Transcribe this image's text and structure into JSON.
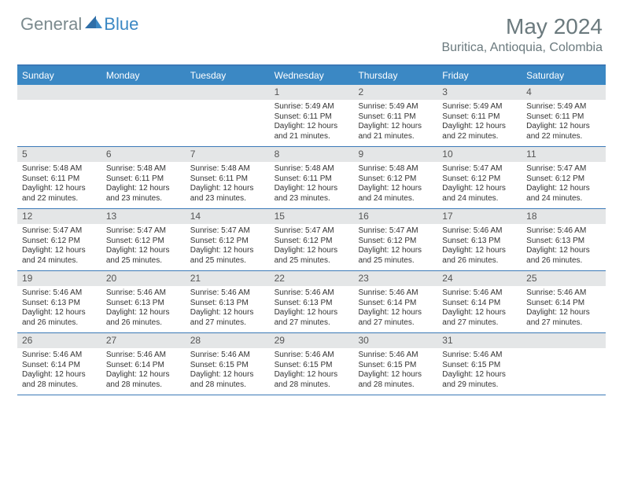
{
  "logo": {
    "general": "General",
    "blue": "Blue"
  },
  "title": "May 2024",
  "location": "Buritica, Antioquia, Colombia",
  "colors": {
    "header_bar": "#3B88C4",
    "row_border": "#3B79B7",
    "daynum_bg": "#E4E6E7",
    "text_muted": "#6B7A7E",
    "logo_gray": "#7B8A8E",
    "logo_blue": "#3B88C4"
  },
  "day_headers": [
    "Sunday",
    "Monday",
    "Tuesday",
    "Wednesday",
    "Thursday",
    "Friday",
    "Saturday"
  ],
  "weeks": [
    [
      null,
      null,
      null,
      {
        "n": "1",
        "sr": "5:49 AM",
        "ss": "6:11 PM",
        "dl": "12 hours and 21 minutes."
      },
      {
        "n": "2",
        "sr": "5:49 AM",
        "ss": "6:11 PM",
        "dl": "12 hours and 21 minutes."
      },
      {
        "n": "3",
        "sr": "5:49 AM",
        "ss": "6:11 PM",
        "dl": "12 hours and 22 minutes."
      },
      {
        "n": "4",
        "sr": "5:49 AM",
        "ss": "6:11 PM",
        "dl": "12 hours and 22 minutes."
      }
    ],
    [
      {
        "n": "5",
        "sr": "5:48 AM",
        "ss": "6:11 PM",
        "dl": "12 hours and 22 minutes."
      },
      {
        "n": "6",
        "sr": "5:48 AM",
        "ss": "6:11 PM",
        "dl": "12 hours and 23 minutes."
      },
      {
        "n": "7",
        "sr": "5:48 AM",
        "ss": "6:11 PM",
        "dl": "12 hours and 23 minutes."
      },
      {
        "n": "8",
        "sr": "5:48 AM",
        "ss": "6:11 PM",
        "dl": "12 hours and 23 minutes."
      },
      {
        "n": "9",
        "sr": "5:48 AM",
        "ss": "6:12 PM",
        "dl": "12 hours and 24 minutes."
      },
      {
        "n": "10",
        "sr": "5:47 AM",
        "ss": "6:12 PM",
        "dl": "12 hours and 24 minutes."
      },
      {
        "n": "11",
        "sr": "5:47 AM",
        "ss": "6:12 PM",
        "dl": "12 hours and 24 minutes."
      }
    ],
    [
      {
        "n": "12",
        "sr": "5:47 AM",
        "ss": "6:12 PM",
        "dl": "12 hours and 24 minutes."
      },
      {
        "n": "13",
        "sr": "5:47 AM",
        "ss": "6:12 PM",
        "dl": "12 hours and 25 minutes."
      },
      {
        "n": "14",
        "sr": "5:47 AM",
        "ss": "6:12 PM",
        "dl": "12 hours and 25 minutes."
      },
      {
        "n": "15",
        "sr": "5:47 AM",
        "ss": "6:12 PM",
        "dl": "12 hours and 25 minutes."
      },
      {
        "n": "16",
        "sr": "5:47 AM",
        "ss": "6:12 PM",
        "dl": "12 hours and 25 minutes."
      },
      {
        "n": "17",
        "sr": "5:46 AM",
        "ss": "6:13 PM",
        "dl": "12 hours and 26 minutes."
      },
      {
        "n": "18",
        "sr": "5:46 AM",
        "ss": "6:13 PM",
        "dl": "12 hours and 26 minutes."
      }
    ],
    [
      {
        "n": "19",
        "sr": "5:46 AM",
        "ss": "6:13 PM",
        "dl": "12 hours and 26 minutes."
      },
      {
        "n": "20",
        "sr": "5:46 AM",
        "ss": "6:13 PM",
        "dl": "12 hours and 26 minutes."
      },
      {
        "n": "21",
        "sr": "5:46 AM",
        "ss": "6:13 PM",
        "dl": "12 hours and 27 minutes."
      },
      {
        "n": "22",
        "sr": "5:46 AM",
        "ss": "6:13 PM",
        "dl": "12 hours and 27 minutes."
      },
      {
        "n": "23",
        "sr": "5:46 AM",
        "ss": "6:14 PM",
        "dl": "12 hours and 27 minutes."
      },
      {
        "n": "24",
        "sr": "5:46 AM",
        "ss": "6:14 PM",
        "dl": "12 hours and 27 minutes."
      },
      {
        "n": "25",
        "sr": "5:46 AM",
        "ss": "6:14 PM",
        "dl": "12 hours and 27 minutes."
      }
    ],
    [
      {
        "n": "26",
        "sr": "5:46 AM",
        "ss": "6:14 PM",
        "dl": "12 hours and 28 minutes."
      },
      {
        "n": "27",
        "sr": "5:46 AM",
        "ss": "6:14 PM",
        "dl": "12 hours and 28 minutes."
      },
      {
        "n": "28",
        "sr": "5:46 AM",
        "ss": "6:15 PM",
        "dl": "12 hours and 28 minutes."
      },
      {
        "n": "29",
        "sr": "5:46 AM",
        "ss": "6:15 PM",
        "dl": "12 hours and 28 minutes."
      },
      {
        "n": "30",
        "sr": "5:46 AM",
        "ss": "6:15 PM",
        "dl": "12 hours and 28 minutes."
      },
      {
        "n": "31",
        "sr": "5:46 AM",
        "ss": "6:15 PM",
        "dl": "12 hours and 29 minutes."
      },
      null
    ]
  ],
  "labels": {
    "sunrise": "Sunrise:",
    "sunset": "Sunset:",
    "daylight": "Daylight:"
  }
}
